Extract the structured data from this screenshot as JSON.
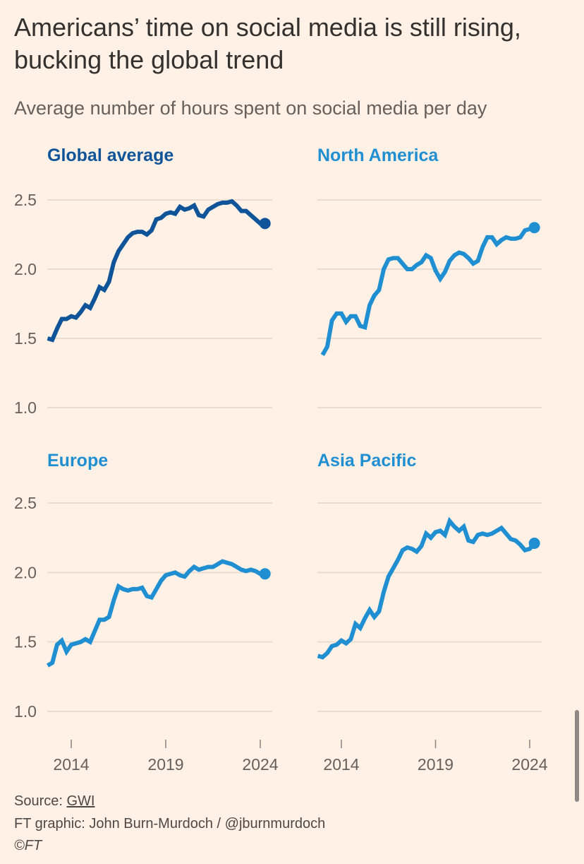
{
  "title": "Americans’ time on social media is still rising, bucking the global trend",
  "subtitle": "Average number of hours spent on social media per day",
  "footer": {
    "source_label": "Source: ",
    "source_link": "GWI",
    "credit": "FT graphic: John Burn-Murdoch / @jburnmurdoch",
    "copyright": "©FT"
  },
  "colors": {
    "background": "#FFF1E5",
    "global": "#0F5499",
    "region": "#1F8FD2",
    "grid": "#E9DDD2",
    "text": "#66605C"
  },
  "chart_data": {
    "type": "line",
    "layout": "small multiples 2x2",
    "ylabel": "",
    "ylim": [
      1.0,
      2.5
    ],
    "yticks": [
      "1.0",
      "1.5",
      "2.0",
      "2.5"
    ],
    "ytick_values": [
      1.0,
      1.5,
      2.0,
      2.5
    ],
    "xticks": [
      "2014",
      "2019",
      "2024"
    ],
    "xtick_values": [
      2014,
      2019,
      2024
    ],
    "grid": true,
    "x_step_years": 0.25,
    "panels": [
      {
        "name": "Global average",
        "color": "#0F5499",
        "x_start": 2012.75,
        "values": [
          1.5,
          1.49,
          1.57,
          1.64,
          1.64,
          1.66,
          1.65,
          1.69,
          1.74,
          1.72,
          1.79,
          1.87,
          1.85,
          1.91,
          2.05,
          2.13,
          2.18,
          2.23,
          2.26,
          2.27,
          2.27,
          2.25,
          2.28,
          2.36,
          2.37,
          2.4,
          2.41,
          2.4,
          2.45,
          2.43,
          2.44,
          2.46,
          2.39,
          2.38,
          2.43,
          2.45,
          2.47,
          2.48,
          2.48,
          2.49,
          2.46,
          2.42,
          2.42,
          2.39,
          2.36,
          2.33,
          2.33
        ]
      },
      {
        "name": "North America",
        "color": "#1F8FD2",
        "x_start": 2013.0,
        "values": [
          1.38,
          1.44,
          1.63,
          1.68,
          1.68,
          1.62,
          1.66,
          1.66,
          1.59,
          1.58,
          1.74,
          1.81,
          1.85,
          2.0,
          2.07,
          2.08,
          2.08,
          2.04,
          2.0,
          2.0,
          2.03,
          2.05,
          2.1,
          2.08,
          1.99,
          1.93,
          1.98,
          2.06,
          2.1,
          2.12,
          2.11,
          2.08,
          2.04,
          2.06,
          2.16,
          2.23,
          2.23,
          2.18,
          2.21,
          2.23,
          2.22,
          2.22,
          2.23,
          2.28,
          2.29,
          2.3
        ]
      },
      {
        "name": "Europe",
        "color": "#1F8FD2",
        "x_start": 2012.75,
        "values": [
          1.33,
          1.35,
          1.48,
          1.51,
          1.43,
          1.48,
          1.49,
          1.5,
          1.52,
          1.5,
          1.58,
          1.66,
          1.66,
          1.68,
          1.8,
          1.9,
          1.88,
          1.87,
          1.88,
          1.88,
          1.89,
          1.83,
          1.82,
          1.88,
          1.94,
          1.98,
          1.99,
          2.0,
          1.98,
          1.97,
          2.01,
          2.04,
          2.02,
          2.03,
          2.04,
          2.04,
          2.06,
          2.08,
          2.07,
          2.06,
          2.04,
          2.02,
          2.01,
          2.02,
          2.01,
          1.99,
          1.99
        ]
      },
      {
        "name": "Asia Pacific",
        "color": "#1F8FD2",
        "x_start": 2012.75,
        "values": [
          1.4,
          1.39,
          1.42,
          1.47,
          1.48,
          1.51,
          1.49,
          1.52,
          1.63,
          1.6,
          1.67,
          1.73,
          1.68,
          1.72,
          1.86,
          1.97,
          2.03,
          2.09,
          2.16,
          2.18,
          2.17,
          2.15,
          2.19,
          2.28,
          2.25,
          2.29,
          2.3,
          2.27,
          2.37,
          2.33,
          2.3,
          2.33,
          2.23,
          2.22,
          2.27,
          2.28,
          2.27,
          2.28,
          2.3,
          2.32,
          2.28,
          2.24,
          2.23,
          2.2,
          2.16,
          2.17,
          2.21
        ]
      }
    ]
  }
}
